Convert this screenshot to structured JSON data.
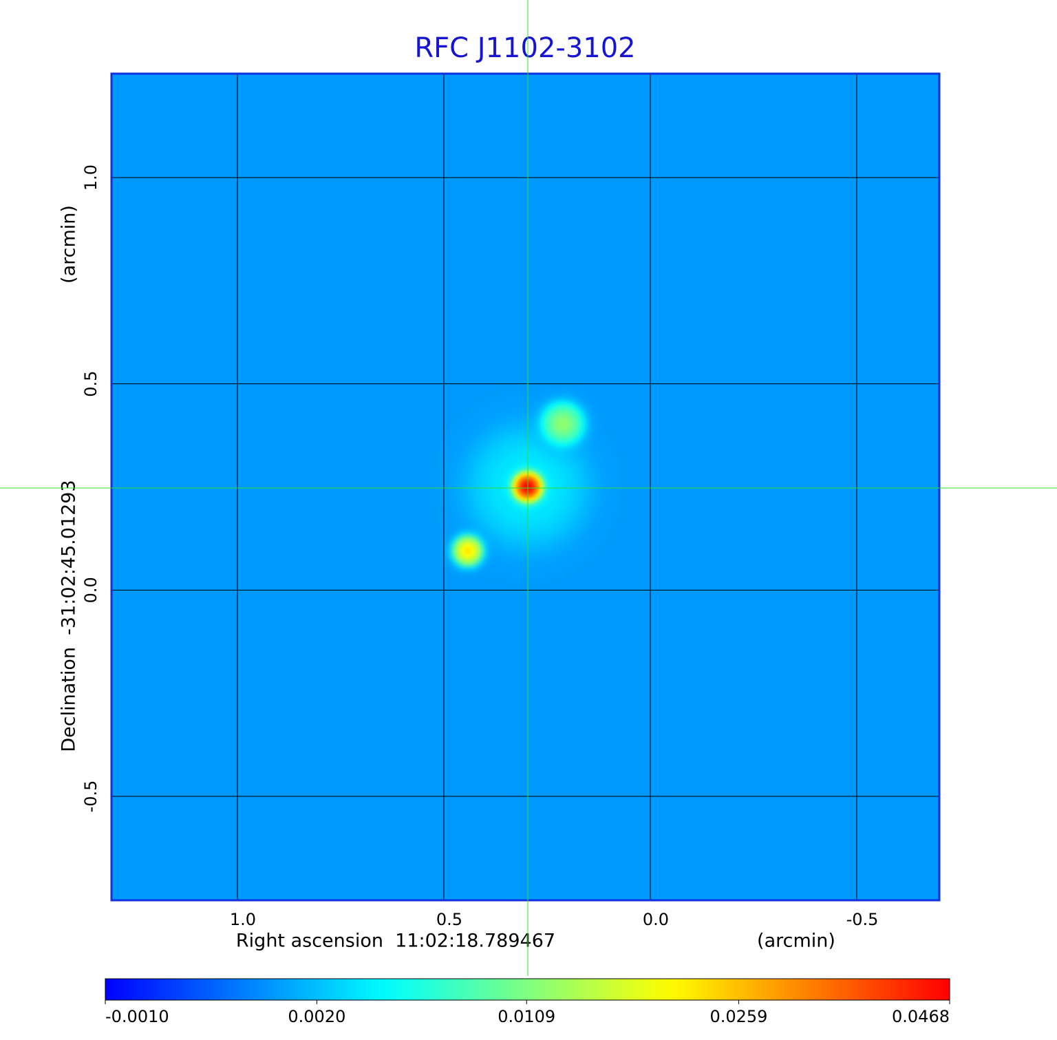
{
  "chart_data": {
    "type": "image",
    "title": "RFC J1102-3102",
    "x_label": "Right ascension  11:02:18.789467",
    "x_unit": "(arcmin)",
    "y_label": "Declination  -31:02:45.01293",
    "y_unit": "(arcmin)",
    "xlim": [
      1.305,
      -0.7
    ],
    "ylim": [
      -0.752,
      1.252
    ],
    "xticks": [
      {
        "value": 1,
        "label": "1.0"
      },
      {
        "value": 0.5,
        "label": "0.5"
      },
      {
        "value": 0,
        "label": "0.0"
      },
      {
        "value": -0.5,
        "label": "-0.5"
      }
    ],
    "yticks": [
      {
        "value": -0.5,
        "label": "-0.5"
      },
      {
        "value": 0,
        "label": "0.0"
      },
      {
        "value": 0.5,
        "label": "0.5"
      },
      {
        "value": 1,
        "label": "1.0"
      }
    ],
    "grid": true,
    "colormap": "jet",
    "background_level": 0.0009,
    "sources": [
      {
        "x": 0.297,
        "y": 0.25,
        "peak": 0.004,
        "size": 0.1
      },
      {
        "x": 0.212,
        "y": 0.403,
        "peak": 0.012,
        "size": 0.035
      },
      {
        "x": 0.442,
        "y": 0.095,
        "peak": 0.022,
        "size": 0.025
      },
      {
        "x": 0.297,
        "y": 0.25,
        "peak": 0.0468,
        "size": 0.025
      }
    ],
    "colorbar": {
      "lim": [
        -0.001,
        0.0468
      ],
      "scale": "sqrt",
      "ticks": [
        {
          "value": -0.001,
          "label": "-0.0010"
        },
        {
          "value": 0.002,
          "label": "0.0020"
        },
        {
          "value": 0.0109,
          "label": "0.0109"
        },
        {
          "value": 0.0259,
          "label": "0.0259"
        },
        {
          "value": 0.0468,
          "label": "0.0468"
        }
      ]
    }
  }
}
